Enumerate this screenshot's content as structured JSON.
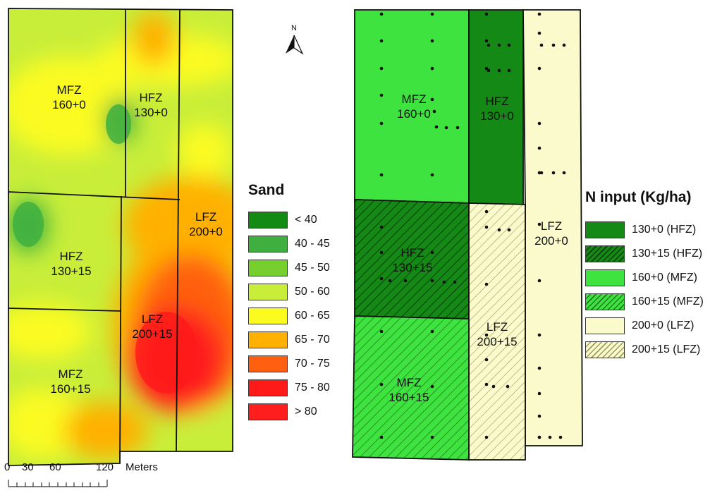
{
  "colors": {
    "sand": [
      "#138a13",
      "#3fb03f",
      "#76cf2c",
      "#c8ee3a",
      "#fbfb20",
      "#ffb000",
      "#ff6010",
      "#ff1a1a",
      "#ff1e1e"
    ],
    "n_input": {
      "hfz": "#158915",
      "mfz": "#3fe33f",
      "lfz": "#fafacc"
    }
  },
  "sand_map": {
    "zones": [
      {
        "name": "MFZ",
        "rate": "160+0"
      },
      {
        "name": "HFZ",
        "rate": "130+0"
      },
      {
        "name": "LFZ",
        "rate": "200+0"
      },
      {
        "name": "HFZ",
        "rate": "130+15"
      },
      {
        "name": "LFZ",
        "rate": "200+15"
      },
      {
        "name": "MFZ",
        "rate": "160+15"
      }
    ],
    "legend": {
      "title": "Sand",
      "items": [
        "< 40",
        "40 - 45",
        "45 - 50",
        "50 - 60",
        "60 - 65",
        "65 - 70",
        "70 - 75",
        "75 - 80",
        "> 80"
      ]
    }
  },
  "n_map": {
    "zones": [
      {
        "name": "MFZ",
        "rate": "160+0"
      },
      {
        "name": "HFZ",
        "rate": "130+0"
      },
      {
        "name": "LFZ",
        "rate": "200+0"
      },
      {
        "name": "HFZ",
        "rate": "130+15"
      },
      {
        "name": "LFZ",
        "rate": "200+15"
      },
      {
        "name": "MFZ",
        "rate": "160+15"
      }
    ],
    "legend": {
      "title": "N input (Kg/ha)",
      "items": [
        {
          "label": "130+0 (HFZ)",
          "color": "hfz",
          "hatched": false
        },
        {
          "label": "130+15 (HFZ)",
          "color": "hfz",
          "hatched": true
        },
        {
          "label": "160+0 (MFZ)",
          "color": "mfz",
          "hatched": false
        },
        {
          "label": "160+15 (MFZ)",
          "color": "mfz",
          "hatched": true
        },
        {
          "label": "200+0 (LFZ)",
          "color": "lfz",
          "hatched": false
        },
        {
          "label": "200+15 (LFZ)",
          "color": "lfz",
          "hatched": true
        }
      ]
    }
  },
  "scale_bar": {
    "labels": [
      "0",
      "30",
      "60",
      "120"
    ],
    "unit": "Meters"
  },
  "north_arrow": {
    "label": "N"
  }
}
